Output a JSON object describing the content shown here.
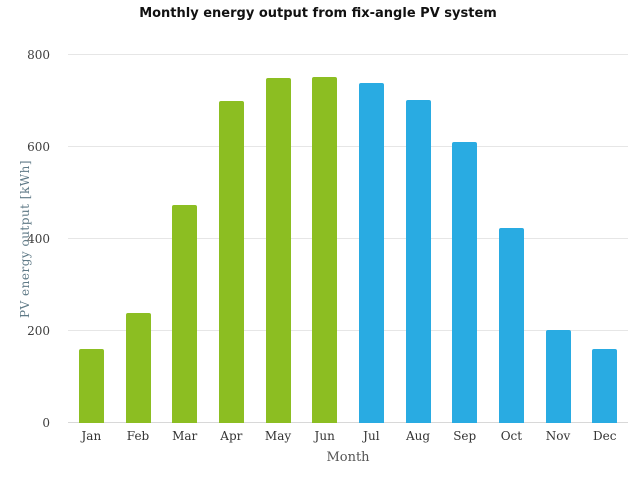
{
  "chart_data": {
    "type": "bar",
    "title": "Monthly energy output from fix-angle PV system",
    "xlabel": "Month",
    "ylabel": "PV energy output [kWh]",
    "categories": [
      "Jan",
      "Feb",
      "Mar",
      "Apr",
      "May",
      "Jun",
      "Jul",
      "Aug",
      "Sep",
      "Oct",
      "Nov",
      "Dec"
    ],
    "values": [
      160,
      240,
      473,
      700,
      750,
      753,
      740,
      703,
      610,
      425,
      202,
      160
    ],
    "bar_colors": [
      "#8CBE22",
      "#8CBE22",
      "#8CBE22",
      "#8CBE22",
      "#8CBE22",
      "#8CBE22",
      "#29ABE2",
      "#29ABE2",
      "#29ABE2",
      "#29ABE2",
      "#29ABE2",
      "#29ABE2"
    ],
    "ylim": [
      0,
      800
    ],
    "yticks": [
      0,
      200,
      400,
      600,
      800
    ],
    "grid": true,
    "legend": false,
    "colors": {
      "green_bars": "#8CBE22",
      "blue_bars": "#29ABE2",
      "gridline": "#e6e6e6",
      "tick_text": "#3d3d3d",
      "axis_label_text": "#5f7a87"
    }
  }
}
